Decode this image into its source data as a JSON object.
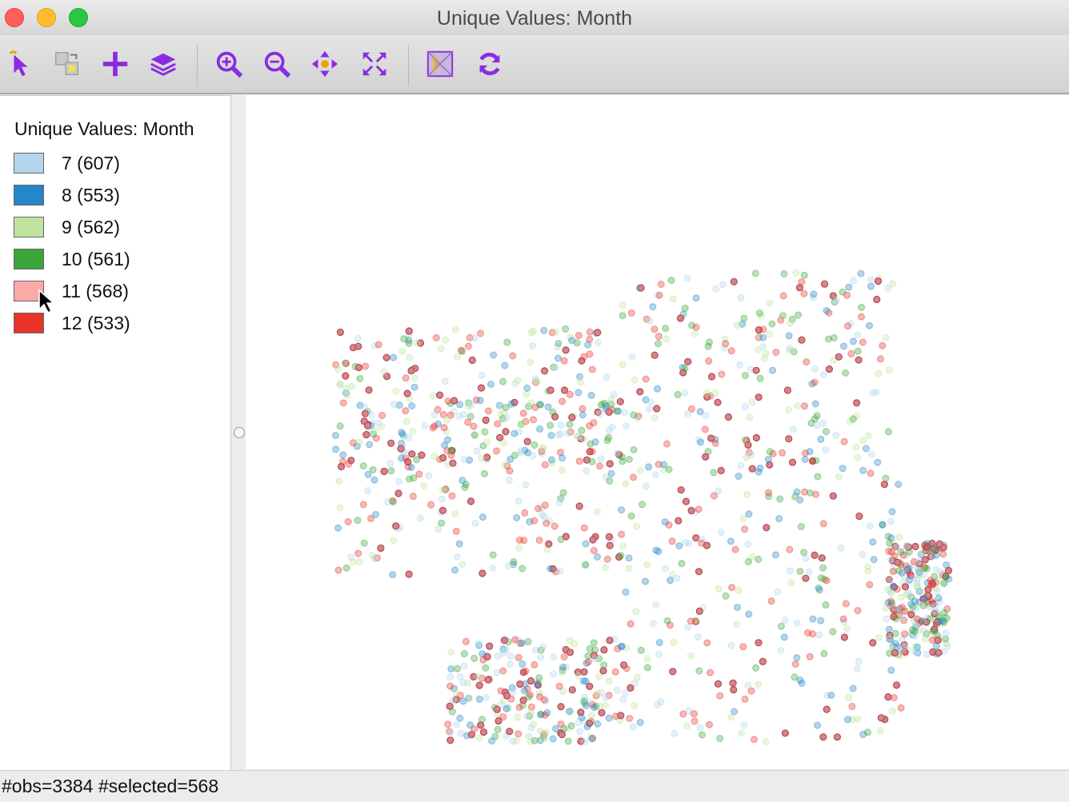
{
  "window": {
    "title": "Unique Values: Month"
  },
  "toolbar": {
    "tools": [
      {
        "icon": "select-arrow-icon"
      },
      {
        "icon": "selection-transfer-icon"
      },
      {
        "icon": "add-plus-icon"
      },
      {
        "icon": "layers-icon"
      },
      {
        "icon": "zoom-in-icon"
      },
      {
        "icon": "zoom-out-icon"
      },
      {
        "icon": "pan-icon"
      },
      {
        "icon": "full-extent-icon"
      },
      {
        "icon": "basemap-icon"
      },
      {
        "icon": "refresh-icon"
      }
    ],
    "accent_color": "#8a2be2"
  },
  "legend": {
    "title": "Unique Values: Month",
    "items": [
      {
        "label": "7 (607)",
        "color": "#b3d6ea"
      },
      {
        "label": "8 (553)",
        "color": "#2488c8"
      },
      {
        "label": "9 (562)",
        "color": "#c0e4a0"
      },
      {
        "label": "10 (561)",
        "color": "#3aa63a"
      },
      {
        "label": "11 (568)",
        "color": "#fbaaa8"
      },
      {
        "label": "12 (533)",
        "color": "#e8332a"
      }
    ]
  },
  "map": {
    "selected_category": "11",
    "selected_point_fill": "#d8828a",
    "selected_point_stroke": "#b24c55",
    "unselected_alpha": 0.35
  },
  "status": {
    "text": "#obs=3384 #selected=568"
  }
}
